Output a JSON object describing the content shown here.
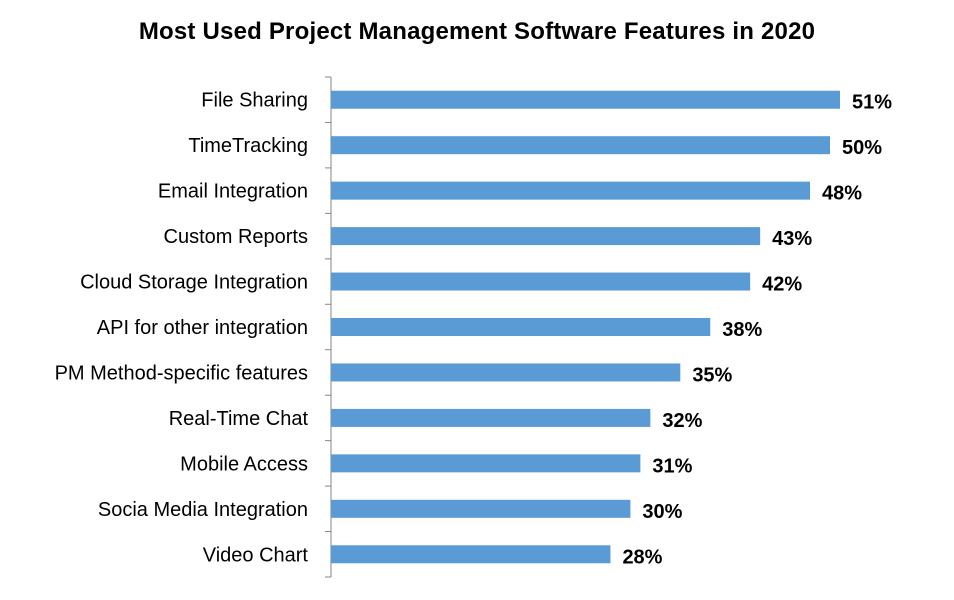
{
  "chart_data": {
    "type": "bar",
    "orientation": "horizontal",
    "title": "Most Used Project Management Software Features in 2020",
    "xlabel": "",
    "ylabel": "",
    "categories": [
      "File Sharing",
      "TimeTracking",
      "Email Integration",
      "Custom Reports",
      "Cloud Storage Integration",
      "API for other integration",
      "PM Method-specific features",
      "Real-Time Chat",
      "Mobile Access",
      "Socia Media Integration",
      "Video Chart"
    ],
    "values": [
      51,
      50,
      48,
      43,
      42,
      38,
      35,
      32,
      31,
      30,
      28
    ],
    "value_labels": [
      "51%",
      "50%",
      "48%",
      "43%",
      "42%",
      "38%",
      "35%",
      "32%",
      "31%",
      "30%",
      "28%"
    ],
    "unit": "%",
    "bar_color": "#5B9BD5",
    "grid": false,
    "legend": "none"
  }
}
